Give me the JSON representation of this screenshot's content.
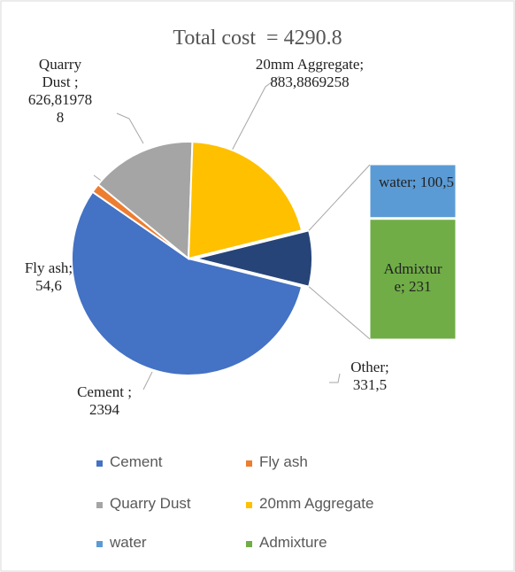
{
  "chart_data": {
    "type": "pie",
    "title": "Total cost  = 4290.8",
    "categories": [
      "Cement",
      "Fly ash",
      "Quarry Dust",
      "20mm Aggregate"
    ],
    "values": [
      2394,
      54.6,
      626.819788,
      883.8869258
    ],
    "value_labels": [
      "Cement ; 2394",
      "Fly ash; 54,6",
      "Quarry Dust ; 626,819788",
      "20mm Aggregate; 883,8869258"
    ],
    "colors": [
      "#4472c4",
      "#ed7d31",
      "#a5a5a5",
      "#ffc000"
    ],
    "other": {
      "name": "Other",
      "value": 331.5,
      "value_label": "Other; 331,5",
      "color": "#264478"
    },
    "bar": {
      "categories": [
        "water",
        "Admixture"
      ],
      "values": [
        100.5,
        231
      ],
      "value_labels": [
        "water; 100,5",
        "Admixture; 231"
      ],
      "colors": [
        "#5b9bd5",
        "#70ad47"
      ]
    },
    "legend": "bottom"
  }
}
